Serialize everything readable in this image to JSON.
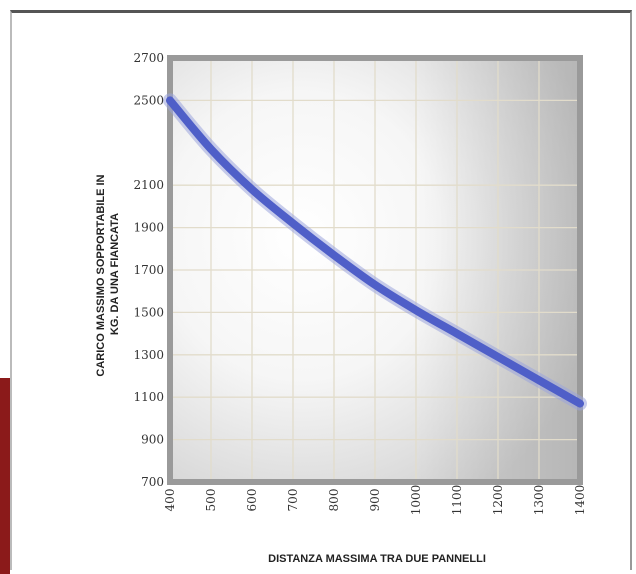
{
  "chart_data": {
    "type": "line",
    "title": "",
    "xlabel": "DISTANZA MASSIMA TRA DUE PANNELLI",
    "ylabel_lines": [
      "CARICO MASSIMO SOPPORTABILE IN",
      "KG. DA UNA FIANCATA"
    ],
    "x_ticks": [
      400,
      500,
      600,
      700,
      800,
      900,
      1000,
      1100,
      1200,
      1300,
      1400
    ],
    "y_ticks": [
      700,
      900,
      1100,
      1300,
      1500,
      1700,
      1900,
      2100,
      2500,
      2700
    ],
    "xlim": [
      400,
      1400
    ],
    "ylim": [
      700,
      2700
    ],
    "grid": true,
    "series": [
      {
        "x": [
          400,
          500,
          600,
          700,
          800,
          900,
          1000,
          1100,
          1200,
          1300,
          1400
        ],
        "y": [
          2500,
          2270,
          2080,
          1920,
          1770,
          1630,
          1510,
          1400,
          1290,
          1180,
          1070
        ]
      }
    ],
    "line_color": "#4f5fc8"
  }
}
